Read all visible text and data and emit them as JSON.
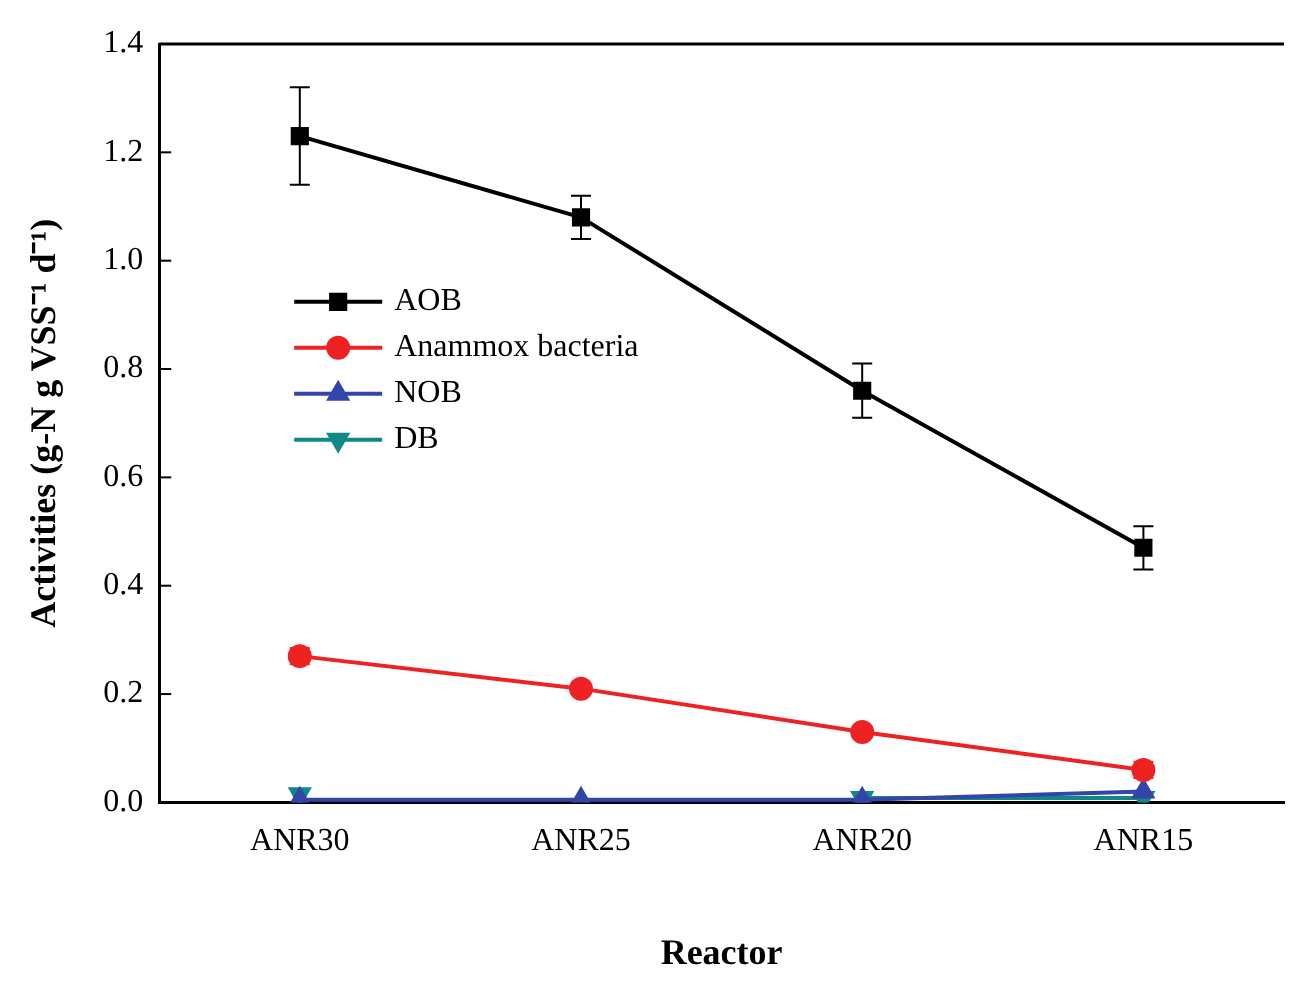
{
  "chart_data": {
    "type": "line",
    "xlabel": "Reactor",
    "ylabel": "Activities (g-N g VSS⁻¹ d⁻¹)",
    "categories": [
      "ANR30",
      "ANR25",
      "ANR20",
      "ANR15"
    ],
    "ylim": [
      0,
      1.4
    ],
    "yticks": [
      {
        "value": 0,
        "label": "0.0"
      },
      0.2,
      0.4,
      0.6,
      0.8,
      {
        "value": 1,
        "label": "1.0"
      },
      1.2,
      1.4
    ],
    "grid": false,
    "legend": "left",
    "line_style": "solid",
    "series": [
      {
        "name": "AOB",
        "color": "#000000",
        "marker": "square",
        "values": [
          1.23,
          1.08,
          0.76,
          0.47
        ],
        "errors": [
          0.09,
          0.04,
          0.05,
          0.04
        ]
      },
      {
        "name": "Anammox bacteria",
        "color": "#ee2222",
        "marker": "circle",
        "values": [
          0.27,
          0.21,
          0.13,
          0.06
        ],
        "errors": [
          0.015,
          null,
          null,
          0.015
        ]
      },
      {
        "name": "NOB",
        "color": "#3344aa",
        "marker": "triangle",
        "values": [
          0.005,
          0.005,
          0.005,
          0.02
        ]
      },
      {
        "name": "DB",
        "color": "#118888",
        "marker": "triangle_down",
        "values": [
          0.015,
          null,
          0.008,
          0.008
        ]
      }
    ]
  }
}
